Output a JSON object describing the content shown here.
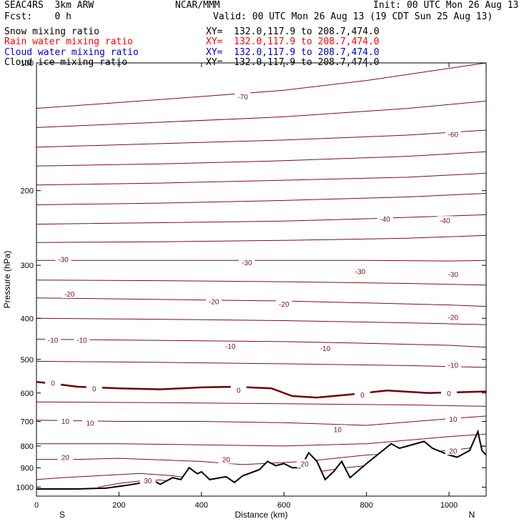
{
  "header": {
    "model": "SEAC4RS  3km ARW",
    "center": "NCAR/MMM",
    "init": "Init: 00 UTC Mon 26 Aug 13",
    "fcst": "Fcst:    0 h",
    "valid": "Valid: 00 UTC Mon 26 Aug 13 (19 CDT Sun 25 Aug 13)"
  },
  "fields": [
    {
      "name": "Snow mixing ratio",
      "xy": "XY=  132.0,117.9 to 208.7,474.0",
      "color": "#000000"
    },
    {
      "name": "Rain water mixing ratio",
      "xy": "XY=  132.0,117.9 to 208.7,474.0",
      "color": "#ff0000"
    },
    {
      "name": "Cloud water mixing ratio",
      "xy": "XY=  132.0,117.9 to 208.7,474.0",
      "color": "#0000cc"
    },
    {
      "name": "Cloud ice mixing ratio",
      "xy": "XY=  132.0,117.9 to 208.7,474.0",
      "color": "#000000"
    }
  ],
  "chart_data": {
    "type": "line",
    "xlabel": "Distance (km)",
    "ylabel": "Pressure (hPa)",
    "xlim": [
      0,
      1090
    ],
    "ylim": [
      1050,
      100
    ],
    "y_scale": "log",
    "xticks": [
      0,
      200,
      400,
      600,
      800,
      1000
    ],
    "yticks": [
      100,
      200,
      300,
      400,
      500,
      600,
      700,
      800,
      900,
      1000
    ],
    "endpoint_labels": {
      "left": "S",
      "right": "N"
    },
    "colors": {
      "isotherm": "#7a1010",
      "terrain": "#000000",
      "freezing": "#6e0000"
    },
    "isotherms": [
      {
        "level": -70,
        "label": "-70",
        "pressure": [
          [
            0,
            128
          ],
          [
            200,
            124
          ],
          [
            400,
            120
          ],
          [
            600,
            116
          ],
          [
            800,
            110
          ],
          [
            1000,
            103
          ],
          [
            1090,
            100
          ]
        ],
        "labels": [
          [
            500,
            120
          ]
        ]
      },
      {
        "level": -65,
        "label": "",
        "pressure": [
          [
            0,
            142
          ],
          [
            300,
            138
          ],
          [
            600,
            134
          ],
          [
            900,
            128
          ],
          [
            1090,
            123
          ]
        ],
        "labels": []
      },
      {
        "level": -60,
        "label": "-60",
        "pressure": [
          [
            0,
            158
          ],
          [
            300,
            155
          ],
          [
            600,
            152
          ],
          [
            900,
            148
          ],
          [
            1090,
            144
          ]
        ],
        "labels": [
          [
            1010,
            147
          ]
        ]
      },
      {
        "level": -55,
        "label": "",
        "pressure": [
          [
            0,
            175
          ],
          [
            300,
            173
          ],
          [
            600,
            170
          ],
          [
            900,
            166
          ],
          [
            1090,
            162
          ]
        ],
        "labels": []
      },
      {
        "level": -50,
        "label": "",
        "pressure": [
          [
            0,
            194
          ],
          [
            300,
            192
          ],
          [
            600,
            189
          ],
          [
            900,
            186
          ],
          [
            1090,
            182
          ]
        ],
        "labels": []
      },
      {
        "level": -45,
        "label": "",
        "pressure": [
          [
            0,
            216
          ],
          [
            300,
            214
          ],
          [
            600,
            211
          ],
          [
            900,
            207
          ],
          [
            1090,
            203
          ]
        ],
        "labels": []
      },
      {
        "level": -40,
        "label": "-40",
        "pressure": [
          [
            0,
            240
          ],
          [
            300,
            238
          ],
          [
            600,
            236
          ],
          [
            800,
            233
          ],
          [
            1090,
            228
          ]
        ],
        "labels": [
          [
            845,
            233
          ],
          [
            990,
            235
          ]
        ]
      },
      {
        "level": -35,
        "label": "",
        "pressure": [
          [
            0,
            265
          ],
          [
            300,
            264
          ],
          [
            600,
            262
          ],
          [
            900,
            259
          ],
          [
            1090,
            255
          ]
        ],
        "labels": []
      },
      {
        "level": -30,
        "label": "-30",
        "pressure": [
          [
            0,
            292
          ],
          [
            200,
            292
          ],
          [
            400,
            292
          ],
          [
            600,
            292
          ],
          [
            800,
            292
          ],
          [
            1000,
            293
          ],
          [
            1090,
            292
          ]
        ],
        "labels": [
          [
            65,
            290
          ],
          [
            510,
            295
          ],
          [
            785,
            310
          ],
          [
            1010,
            315
          ]
        ]
      },
      {
        "level": -25,
        "label": "",
        "pressure": [
          [
            0,
            325
          ],
          [
            300,
            326
          ],
          [
            600,
            328
          ],
          [
            900,
            331
          ],
          [
            1090,
            334
          ]
        ],
        "labels": []
      },
      {
        "level": -20,
        "label": "-20",
        "pressure": [
          [
            0,
            358
          ],
          [
            200,
            360
          ],
          [
            400,
            362
          ],
          [
            600,
            364
          ],
          [
            800,
            368
          ],
          [
            1000,
            372
          ],
          [
            1090,
            375
          ]
        ],
        "labels": [
          [
            80,
            350
          ],
          [
            430,
            365
          ],
          [
            600,
            370
          ],
          [
            1010,
            397
          ]
        ]
      },
      {
        "level": -15,
        "label": "",
        "pressure": [
          [
            0,
            400
          ],
          [
            300,
            402
          ],
          [
            600,
            405
          ],
          [
            900,
            410
          ],
          [
            1090,
            414
          ]
        ],
        "labels": []
      },
      {
        "level": -10,
        "label": "-10",
        "pressure": [
          [
            0,
            448
          ],
          [
            200,
            450
          ],
          [
            400,
            452
          ],
          [
            600,
            454
          ],
          [
            800,
            458
          ],
          [
            1000,
            463
          ],
          [
            1090,
            468
          ]
        ],
        "labels": [
          [
            40,
            450
          ],
          [
            110,
            450
          ],
          [
            470,
            465
          ],
          [
            700,
            470
          ],
          [
            1010,
            515
          ]
        ]
      },
      {
        "level": -5,
        "label": "",
        "pressure": [
          [
            0,
            505
          ],
          [
            300,
            508
          ],
          [
            600,
            512
          ],
          [
            900,
            517
          ],
          [
            1090,
            522
          ]
        ],
        "labels": []
      },
      {
        "level": 0,
        "label": "0",
        "pressure": [
          [
            0,
            565
          ],
          [
            40,
            570
          ],
          [
            100,
            580
          ],
          [
            200,
            585
          ],
          [
            300,
            588
          ],
          [
            400,
            582
          ],
          [
            480,
            580
          ],
          [
            570,
            585
          ],
          [
            620,
            610
          ],
          [
            680,
            615
          ],
          [
            760,
            605
          ],
          [
            850,
            592
          ],
          [
            950,
            600
          ],
          [
            1090,
            595
          ]
        ],
        "labels": [
          [
            40,
            568
          ],
          [
            140,
            585
          ],
          [
            490,
            590
          ],
          [
            790,
            605
          ],
          [
            1000,
            600
          ]
        ]
      },
      {
        "level": 5,
        "label": "",
        "pressure": [
          [
            0,
            630
          ],
          [
            300,
            632
          ],
          [
            600,
            636
          ],
          [
            900,
            640
          ],
          [
            1090,
            645
          ]
        ],
        "labels": []
      },
      {
        "level": 10,
        "label": "10",
        "pressure": [
          [
            0,
            695
          ],
          [
            200,
            700
          ],
          [
            400,
            700
          ],
          [
            600,
            705
          ],
          [
            800,
            715
          ],
          [
            1000,
            690
          ],
          [
            1090,
            680
          ]
        ],
        "labels": [
          [
            70,
            698
          ],
          [
            130,
            705
          ],
          [
            730,
            730
          ],
          [
            1010,
            690
          ]
        ]
      },
      {
        "level": 15,
        "label": "",
        "pressure": [
          [
            0,
            790
          ],
          [
            200,
            790
          ],
          [
            400,
            795
          ],
          [
            600,
            800
          ],
          [
            800,
            790
          ],
          [
            1000,
            760
          ],
          [
            1090,
            750
          ]
        ],
        "labels": []
      },
      {
        "level": 20,
        "label": "20",
        "pressure": [
          [
            0,
            860
          ],
          [
            100,
            860
          ],
          [
            200,
            855
          ],
          [
            400,
            870
          ],
          [
            500,
            885
          ],
          [
            650,
            870
          ],
          [
            800,
            840
          ],
          [
            1000,
            820
          ],
          [
            1090,
            800
          ]
        ],
        "labels": [
          [
            70,
            850
          ],
          [
            460,
            860
          ],
          [
            650,
            880
          ],
          [
            1010,
            820
          ]
        ]
      },
      {
        "level": 25,
        "label": "",
        "pressure": [
          [
            0,
            960
          ],
          [
            60,
            950
          ],
          [
            150,
            940
          ],
          [
            250,
            928
          ],
          [
            330,
            940
          ],
          [
            400,
            960
          ],
          [
            480,
            975
          ],
          [
            560,
            960
          ],
          [
            650,
            930
          ],
          [
            750,
            900
          ],
          [
            850,
            880
          ],
          [
            1000,
            870
          ],
          [
            1090,
            860
          ]
        ],
        "labels": []
      },
      {
        "level": 30,
        "label": "30",
        "pressure": [
          [
            150,
            1000
          ],
          [
            200,
            980
          ],
          [
            260,
            965
          ],
          [
            300,
            962
          ],
          [
            340,
            975
          ],
          [
            380,
            985
          ]
        ],
        "labels": [
          [
            270,
            965
          ]
        ]
      }
    ],
    "terrain": [
      [
        0,
        1010
      ],
      [
        100,
        1010
      ],
      [
        170,
        1005
      ],
      [
        220,
        990
      ],
      [
        260,
        975
      ],
      [
        280,
        960
      ],
      [
        300,
        985
      ],
      [
        330,
        950
      ],
      [
        350,
        960
      ],
      [
        370,
        900
      ],
      [
        390,
        930
      ],
      [
        400,
        920
      ],
      [
        420,
        960
      ],
      [
        460,
        945
      ],
      [
        480,
        975
      ],
      [
        500,
        940
      ],
      [
        540,
        910
      ],
      [
        560,
        870
      ],
      [
        580,
        890
      ],
      [
        600,
        880
      ],
      [
        620,
        900
      ],
      [
        640,
        900
      ],
      [
        660,
        830
      ],
      [
        680,
        870
      ],
      [
        700,
        960
      ],
      [
        720,
        920
      ],
      [
        740,
        870
      ],
      [
        760,
        950
      ],
      [
        800,
        880
      ],
      [
        860,
        790
      ],
      [
        880,
        810
      ],
      [
        900,
        800
      ],
      [
        940,
        780
      ],
      [
        960,
        810
      ],
      [
        1000,
        840
      ],
      [
        1020,
        850
      ],
      [
        1050,
        820
      ],
      [
        1070,
        740
      ],
      [
        1080,
        820
      ],
      [
        1090,
        840
      ]
    ]
  }
}
